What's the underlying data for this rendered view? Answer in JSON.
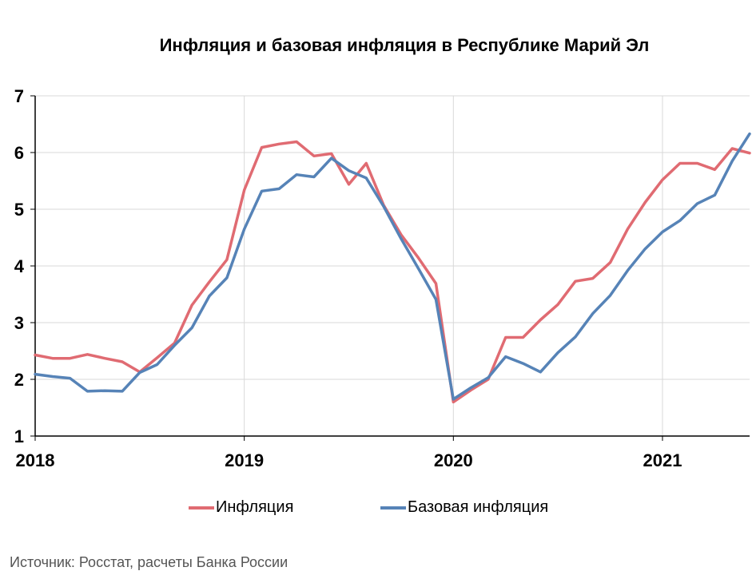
{
  "chart_data": {
    "type": "line",
    "title": "Инфляция и базовая инфляция в Республике Марий Эл",
    "xlabel": "",
    "ylabel": "",
    "ylim": [
      1,
      7
    ],
    "yticks": [
      "1",
      "2",
      "3",
      "4",
      "5",
      "6",
      "7"
    ],
    "x_start": "2018-01",
    "x_range_months": [
      0,
      41
    ],
    "xticks": [
      {
        "month_index": 0,
        "label": "2018"
      },
      {
        "month_index": 12,
        "label": "2019"
      },
      {
        "month_index": 24,
        "label": "2020"
      },
      {
        "month_index": 36,
        "label": "2021"
      }
    ],
    "grid": true,
    "legend": "bottom",
    "series": [
      {
        "name": "Инфляция",
        "color": "#e06b72",
        "values": [
          2.43,
          2.37,
          2.37,
          2.44,
          2.37,
          2.31,
          2.13,
          2.38,
          2.64,
          3.31,
          3.72,
          4.11,
          5.34,
          6.09,
          6.15,
          6.19,
          5.94,
          5.98,
          5.44,
          5.81,
          5.07,
          4.55,
          4.14,
          3.69,
          1.6,
          1.81,
          2.0,
          2.74,
          2.74,
          3.05,
          3.32,
          3.73,
          3.78,
          4.06,
          4.65,
          5.12,
          5.52,
          5.81,
          5.81,
          5.7,
          6.07,
          5.99
        ]
      },
      {
        "name": "Базовая инфляция",
        "color": "#5683b7",
        "values": [
          2.09,
          2.05,
          2.02,
          1.79,
          1.8,
          1.79,
          2.12,
          2.26,
          2.6,
          2.91,
          3.47,
          3.79,
          4.65,
          5.32,
          5.36,
          5.61,
          5.57,
          5.9,
          5.68,
          5.55,
          5.05,
          4.48,
          3.95,
          3.41,
          1.65,
          1.85,
          2.03,
          2.4,
          2.28,
          2.13,
          2.47,
          2.75,
          3.16,
          3.48,
          3.92,
          4.3,
          4.6,
          4.8,
          5.1,
          5.25,
          5.85,
          6.33
        ]
      }
    ]
  },
  "source": "Источник: Росстат, расчеты Банка России"
}
